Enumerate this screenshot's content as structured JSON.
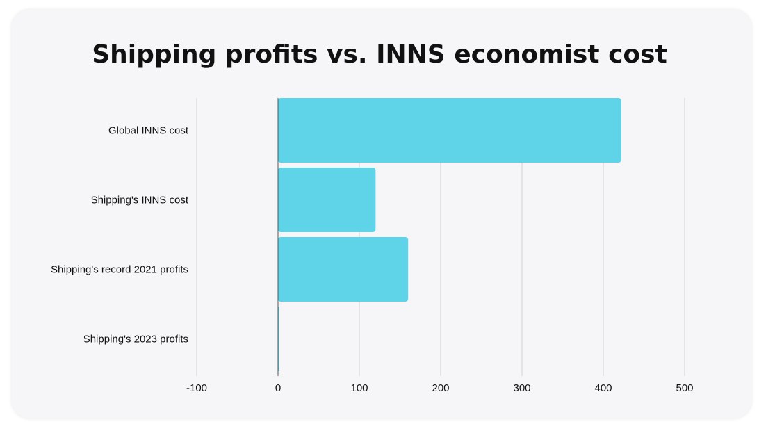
{
  "chart_data": {
    "type": "bar",
    "orientation": "horizontal",
    "title": "Shipping profits vs. INNS economist cost",
    "xlabel": "",
    "ylabel": "",
    "categories": [
      "Global INNS cost",
      "Shipping's INNS cost",
      "Shipping's record 2021 profits",
      "Shipping's 2023 profits"
    ],
    "values": [
      422,
      120,
      160,
      0
    ],
    "xlim": [
      -100,
      500
    ],
    "xticks": [
      -100,
      0,
      100,
      200,
      300,
      400,
      500
    ],
    "grid": true,
    "legend": "none",
    "bar_color": "#5fd4e8",
    "grid_color": "#d2d2d2",
    "axis_color": "#555555"
  }
}
